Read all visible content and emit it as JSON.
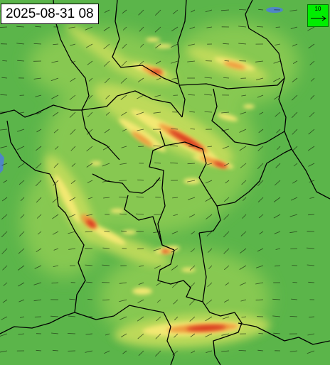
{
  "map": {
    "timestamp": "2025-08-31 08",
    "wind_scale": {
      "label": "10",
      "direction": "east"
    },
    "colors": {
      "base_green": "#5bb54a",
      "light_green": "#8fcc52",
      "yellow_green": "#c4dc5c",
      "yellow": "#f2e872",
      "orange": "#ef9a3e",
      "red": "#d93a22",
      "border": "#000000",
      "water": "#4f86c6",
      "scale_box": "#00ee00"
    },
    "layers": [
      "wind-speed-fill",
      "wind-vectors",
      "admin-borders"
    ]
  }
}
